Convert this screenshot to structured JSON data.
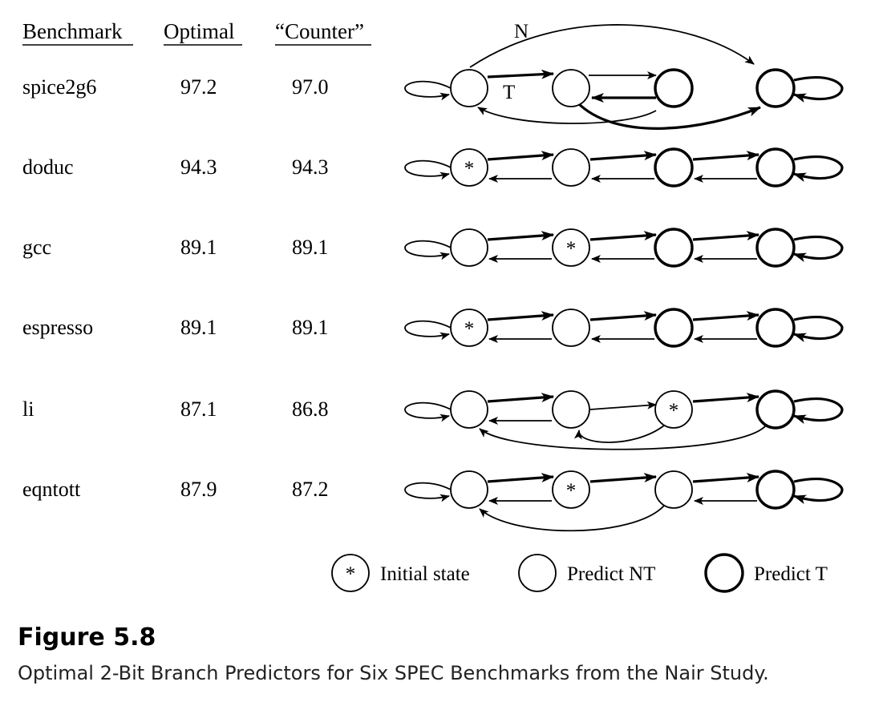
{
  "table": {
    "headers": {
      "benchmark": "Benchmark",
      "optimal": "Optimal",
      "counter": "“Counter”"
    },
    "rows": [
      {
        "benchmark": "spice2g6",
        "optimal": "97.2",
        "counter": "97.0",
        "initial_state": null
      },
      {
        "benchmark": "doduc",
        "optimal": "94.3",
        "counter": "94.3",
        "initial_state": 1
      },
      {
        "benchmark": "gcc",
        "optimal": "89.1",
        "counter": "89.1",
        "initial_state": 2
      },
      {
        "benchmark": "espresso",
        "optimal": "89.1",
        "counter": "89.1",
        "initial_state": 1
      },
      {
        "benchmark": "li",
        "optimal": "87.1",
        "counter": "86.8",
        "initial_state": 3
      },
      {
        "benchmark": "eqntott",
        "optimal": "87.9",
        "counter": "87.2",
        "initial_state": 2
      }
    ]
  },
  "diagram": {
    "edge_label_n": "N",
    "edge_label_t": "T",
    "initial_marker": "*"
  },
  "legend": {
    "marker": "*",
    "initial": "Initial state",
    "predict_nt": "Predict NT",
    "predict_t": "Predict T"
  },
  "caption": {
    "number": "Figure 5.8",
    "text": "Optimal 2-Bit Branch Predictors for Six SPEC Benchmarks from the Nair Study."
  }
}
